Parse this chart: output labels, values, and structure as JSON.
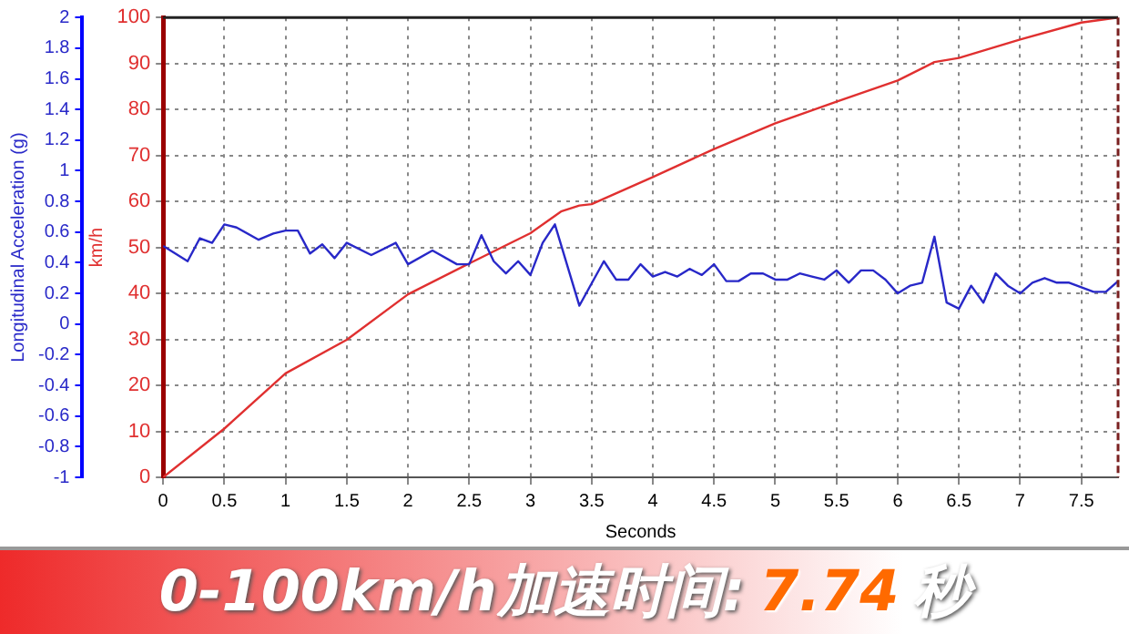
{
  "chart_data": {
    "type": "line",
    "xlabel": "Seconds",
    "ylabel": "Longitudinal Acceleration (g)",
    "y2label": "km/h",
    "annotations": [
      "0-100km/h加速时间:",
      "7.74",
      "秒"
    ],
    "xlim": [
      0,
      7.8
    ],
    "xticks": [
      0,
      0.5,
      1,
      1.5,
      2,
      2.5,
      3,
      3.5,
      4,
      4.5,
      5,
      5.5,
      6,
      6.5,
      7,
      7.5
    ],
    "ylim": [
      -1,
      2
    ],
    "yticks": [
      -1,
      -0.8,
      -0.6,
      -0.4,
      -0.2,
      0,
      0.2,
      0.4,
      0.6,
      0.8,
      1,
      1.2,
      1.4,
      1.6,
      1.8,
      2
    ],
    "y2lim": [
      0,
      100
    ],
    "y2ticks": [
      0,
      10,
      20,
      30,
      40,
      50,
      60,
      70,
      80,
      90,
      100
    ],
    "grid": true,
    "marker": "none",
    "series": [
      {
        "color": "#2828c8",
        "x": [
          0,
          0.2,
          0.3,
          0.4,
          0.5,
          0.6,
          0.78,
          0.9,
          1.0,
          1.1,
          1.2,
          1.3,
          1.4,
          1.5,
          1.7,
          1.9,
          2.0,
          2.2,
          2.4,
          2.5,
          2.6,
          2.7,
          2.8,
          2.9,
          3.0,
          3.1,
          3.2,
          3.4,
          3.6,
          3.7,
          3.8,
          3.9,
          4.0,
          4.1,
          4.2,
          4.3,
          4.4,
          4.5,
          4.6,
          4.7,
          4.8,
          4.9,
          5.0,
          5.1,
          5.2,
          5.3,
          5.4,
          5.5,
          5.6,
          5.7,
          5.8,
          5.9,
          6.0,
          6.1,
          6.2,
          6.3,
          6.4,
          6.5,
          6.6,
          6.7,
          6.8,
          6.9,
          7.0,
          7.1,
          7.2,
          7.3,
          7.4,
          7.5,
          7.6,
          7.7,
          7.8
        ],
        "values": [
          0.51,
          0.41,
          0.56,
          0.53,
          0.65,
          0.63,
          0.55,
          0.59,
          0.61,
          0.61,
          0.46,
          0.52,
          0.43,
          0.53,
          0.45,
          0.53,
          0.39,
          0.48,
          0.39,
          0.39,
          0.58,
          0.41,
          0.33,
          0.41,
          0.32,
          0.53,
          0.65,
          0.12,
          0.41,
          0.29,
          0.29,
          0.39,
          0.31,
          0.34,
          0.31,
          0.36,
          0.32,
          0.39,
          0.28,
          0.28,
          0.33,
          0.33,
          0.29,
          0.29,
          0.33,
          0.31,
          0.29,
          0.35,
          0.27,
          0.35,
          0.35,
          0.29,
          0.2,
          0.25,
          0.27,
          0.57,
          0.14,
          0.1,
          0.25,
          0.14,
          0.33,
          0.25,
          0.2,
          0.27,
          0.3,
          0.27,
          0.27,
          0.24,
          0.21,
          0.21,
          0.28
        ]
      },
      {
        "color": "#e03030",
        "axis": "y2",
        "x": [
          0,
          0.5,
          1.0,
          1.5,
          2.0,
          2.5,
          3.0,
          3.25,
          3.4,
          3.5,
          4.0,
          4.5,
          5.0,
          5.5,
          6.0,
          6.3,
          6.5,
          7.0,
          7.5,
          7.8
        ],
        "values": [
          0,
          10.6,
          22.6,
          29.9,
          39.8,
          46.5,
          53.1,
          57.8,
          59.1,
          59.4,
          65.3,
          71.4,
          77.0,
          81.7,
          86.3,
          90.3,
          91.2,
          95.2,
          98.9,
          100
        ]
      }
    ]
  }
}
